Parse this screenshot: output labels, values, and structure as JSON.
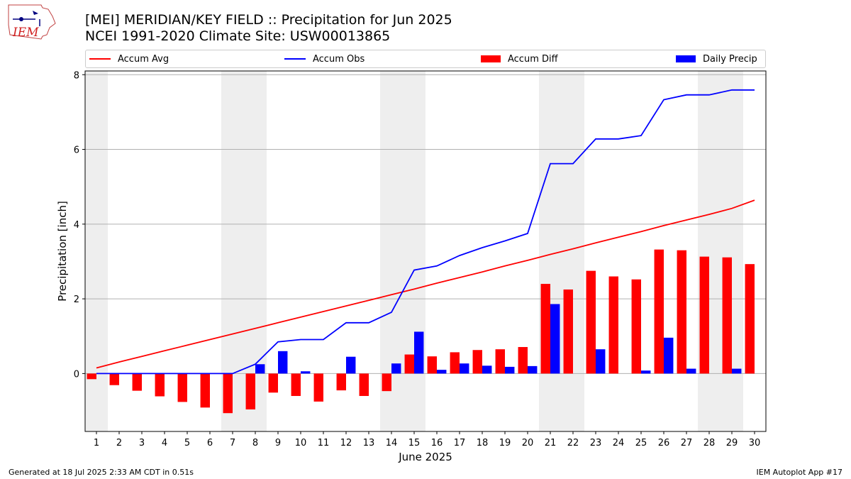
{
  "logo": {
    "text": "IEM"
  },
  "title": {
    "line1": "[MEI] MERIDIAN/KEY FIELD :: Precipitation for Jun 2025",
    "line2": "NCEI 1991-2020 Climate Site: USW00013865"
  },
  "colors": {
    "accum_avg": "#ff0000",
    "accum_obs": "#0000ff",
    "accum_diff": "#ff0000",
    "daily_precip": "#0000ff",
    "weekend_shade": "#eeeeee"
  },
  "legend": {
    "items": [
      {
        "label": "Accum Avg",
        "kind": "line",
        "color": "#ff0000"
      },
      {
        "label": "Accum Obs",
        "kind": "line",
        "color": "#0000ff"
      },
      {
        "label": "Accum Diff",
        "kind": "box",
        "color": "#ff0000"
      },
      {
        "label": "Daily Precip",
        "kind": "box",
        "color": "#0000ff"
      }
    ]
  },
  "chart_data": {
    "type": "bar",
    "title": "[MEI] MERIDIAN/KEY FIELD :: Precipitation for Jun 2025",
    "subtitle": "NCEI 1991-2020 Climate Site: USW00013865",
    "xlabel": "June 2025",
    "ylabel": "Precipitation [inch]",
    "xlim": [
      0.5,
      30.5
    ],
    "ylim": [
      -1.55,
      8.1
    ],
    "yticks": [
      0,
      2,
      4,
      6,
      8
    ],
    "grid": "horizontal",
    "legend_position": "top",
    "categories": [
      "1",
      "2",
      "3",
      "4",
      "5",
      "6",
      "7",
      "8",
      "9",
      "10",
      "11",
      "12",
      "13",
      "14",
      "15",
      "16",
      "17",
      "18",
      "19",
      "20",
      "21",
      "22",
      "23",
      "24",
      "25",
      "26",
      "27",
      "28",
      "29",
      "30"
    ],
    "shaded_days": [
      1,
      7,
      8,
      14,
      15,
      21,
      22,
      28,
      29
    ],
    "series": [
      {
        "name": "Accum Avg",
        "kind": "line",
        "color": "#ff0000",
        "values": [
          0.15,
          0.31,
          0.46,
          0.61,
          0.76,
          0.91,
          1.06,
          1.21,
          1.36,
          1.51,
          1.66,
          1.81,
          1.96,
          2.11,
          2.26,
          2.42,
          2.57,
          2.72,
          2.88,
          3.03,
          3.19,
          3.34,
          3.5,
          3.65,
          3.8,
          3.96,
          4.11,
          4.26,
          4.42,
          4.64
        ]
      },
      {
        "name": "Accum Obs",
        "kind": "line",
        "color": "#0000ff",
        "values": [
          0.0,
          0.0,
          0.0,
          0.0,
          0.0,
          0.0,
          0.0,
          0.25,
          0.85,
          0.91,
          0.91,
          1.36,
          1.36,
          1.64,
          2.77,
          2.88,
          3.16,
          3.37,
          3.55,
          3.75,
          5.62,
          5.62,
          6.28,
          6.28,
          6.37,
          7.33,
          7.46,
          7.46,
          7.59,
          7.59
        ]
      },
      {
        "name": "Accum Diff",
        "kind": "bar",
        "color": "#ff0000",
        "values": [
          -0.15,
          -0.31,
          -0.46,
          -0.61,
          -0.76,
          -0.91,
          -1.06,
          -0.96,
          -0.51,
          -0.6,
          -0.75,
          -0.45,
          -0.6,
          -0.47,
          0.51,
          0.46,
          0.57,
          0.63,
          0.65,
          0.71,
          2.4,
          2.25,
          2.75,
          2.6,
          2.52,
          3.32,
          3.3,
          3.13,
          3.11,
          2.93
        ]
      },
      {
        "name": "Daily Precip",
        "kind": "bar",
        "color": "#0000ff",
        "values": [
          0,
          0,
          0,
          0,
          0,
          0,
          0,
          0.25,
          0.6,
          0.06,
          0,
          0.45,
          0,
          0.27,
          1.12,
          0.1,
          0.27,
          0.21,
          0.18,
          0.2,
          1.86,
          0,
          0.65,
          0,
          0.08,
          0.96,
          0.13,
          0,
          0.13,
          0
        ]
      }
    ]
  },
  "footer": {
    "left": "Generated at 18 Jul 2025 2:33 AM CDT in 0.51s",
    "right": "IEM Autoplot App #17"
  }
}
